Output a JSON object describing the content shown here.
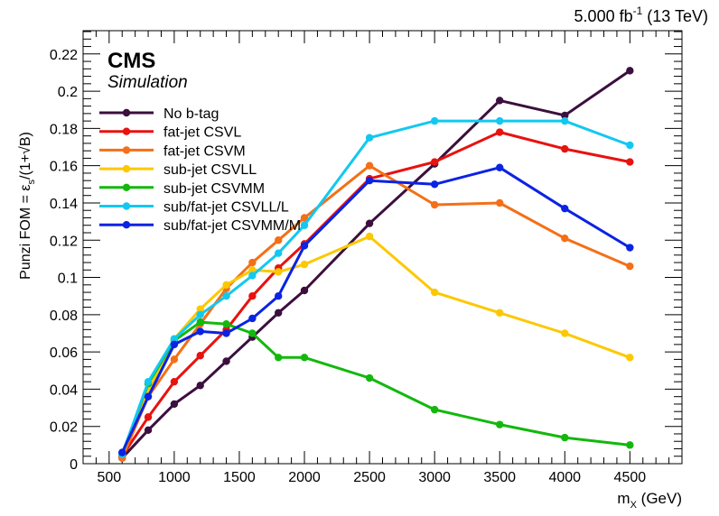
{
  "header": {
    "lumi": "5.000 fb",
    "lumi_exp": "-1",
    "energy": "(13 TeV)"
  },
  "cms_label": "CMS",
  "cms_sublabel": "Simulation",
  "chart_data": {
    "type": "line",
    "xlabel": "m",
    "xlabel_sub": "X",
    "xlabel_unit": "(GeV)",
    "ylabel": "Punzi FOM = ε",
    "ylabel_sub": "s",
    "ylabel_tail": "/(1+√B)",
    "xlim": [
      300,
      4900
    ],
    "ylim": [
      0,
      0.2325
    ],
    "xticks": [
      500,
      1000,
      1500,
      2000,
      2500,
      3000,
      3500,
      4000,
      4500
    ],
    "yticks": [
      0,
      0.02,
      0.04,
      0.06,
      0.08,
      0.1,
      0.12,
      0.14,
      0.16,
      0.18,
      0.2,
      0.22
    ],
    "ytick_labels": [
      "0",
      "0.02",
      "0.04",
      "0.06",
      "0.08",
      "0.1",
      "0.12",
      "0.14",
      "0.16",
      "0.18",
      "0.2",
      "0.22"
    ],
    "x": [
      600,
      800,
      1000,
      1200,
      1400,
      1600,
      1800,
      2000,
      2500,
      3000,
      3500,
      4000,
      4500
    ],
    "legend_position": "top-left",
    "series": [
      {
        "name": "No b-tag",
        "color": "#3b0f3e",
        "values": [
          0.003,
          0.018,
          0.032,
          0.042,
          0.055,
          0.068,
          0.081,
          0.093,
          0.129,
          0.161,
          0.195,
          0.187,
          0.211
        ]
      },
      {
        "name": "fat-jet CSVL",
        "color": "#e8120e",
        "values": [
          0.004,
          0.025,
          0.044,
          0.058,
          0.072,
          0.09,
          0.105,
          0.118,
          0.153,
          0.162,
          0.178,
          0.169,
          0.162
        ]
      },
      {
        "name": "fat-jet CSVM",
        "color": "#f47016",
        "values": [
          0.003,
          0.036,
          0.056,
          0.075,
          0.094,
          0.108,
          0.12,
          0.132,
          0.16,
          0.139,
          0.14,
          0.121,
          0.106
        ]
      },
      {
        "name": "sub-jet CSVLL",
        "color": "#fcc800",
        "values": [
          0.005,
          0.039,
          0.067,
          0.083,
          0.096,
          0.104,
          0.103,
          0.107,
          0.122,
          0.092,
          0.081,
          0.07,
          0.057
        ]
      },
      {
        "name": "sub-jet CSVMM",
        "color": "#13b80d",
        "values": [
          0.005,
          0.043,
          0.066,
          0.076,
          0.075,
          0.07,
          0.057,
          0.057,
          0.046,
          0.029,
          0.021,
          0.014,
          0.01
        ]
      },
      {
        "name": "sub/fat-jet CSVLL/L",
        "color": "#12c8f0",
        "values": [
          0.005,
          0.044,
          0.067,
          0.08,
          0.09,
          0.101,
          0.113,
          0.128,
          0.175,
          0.184,
          0.184,
          0.184,
          0.171
        ]
      },
      {
        "name": "sub/fat-jet CSVMM/M",
        "color": "#0b23e2",
        "values": [
          0.006,
          0.036,
          0.064,
          0.071,
          0.07,
          0.078,
          0.09,
          0.117,
          0.152,
          0.15,
          0.159,
          0.137,
          0.116
        ]
      }
    ]
  }
}
